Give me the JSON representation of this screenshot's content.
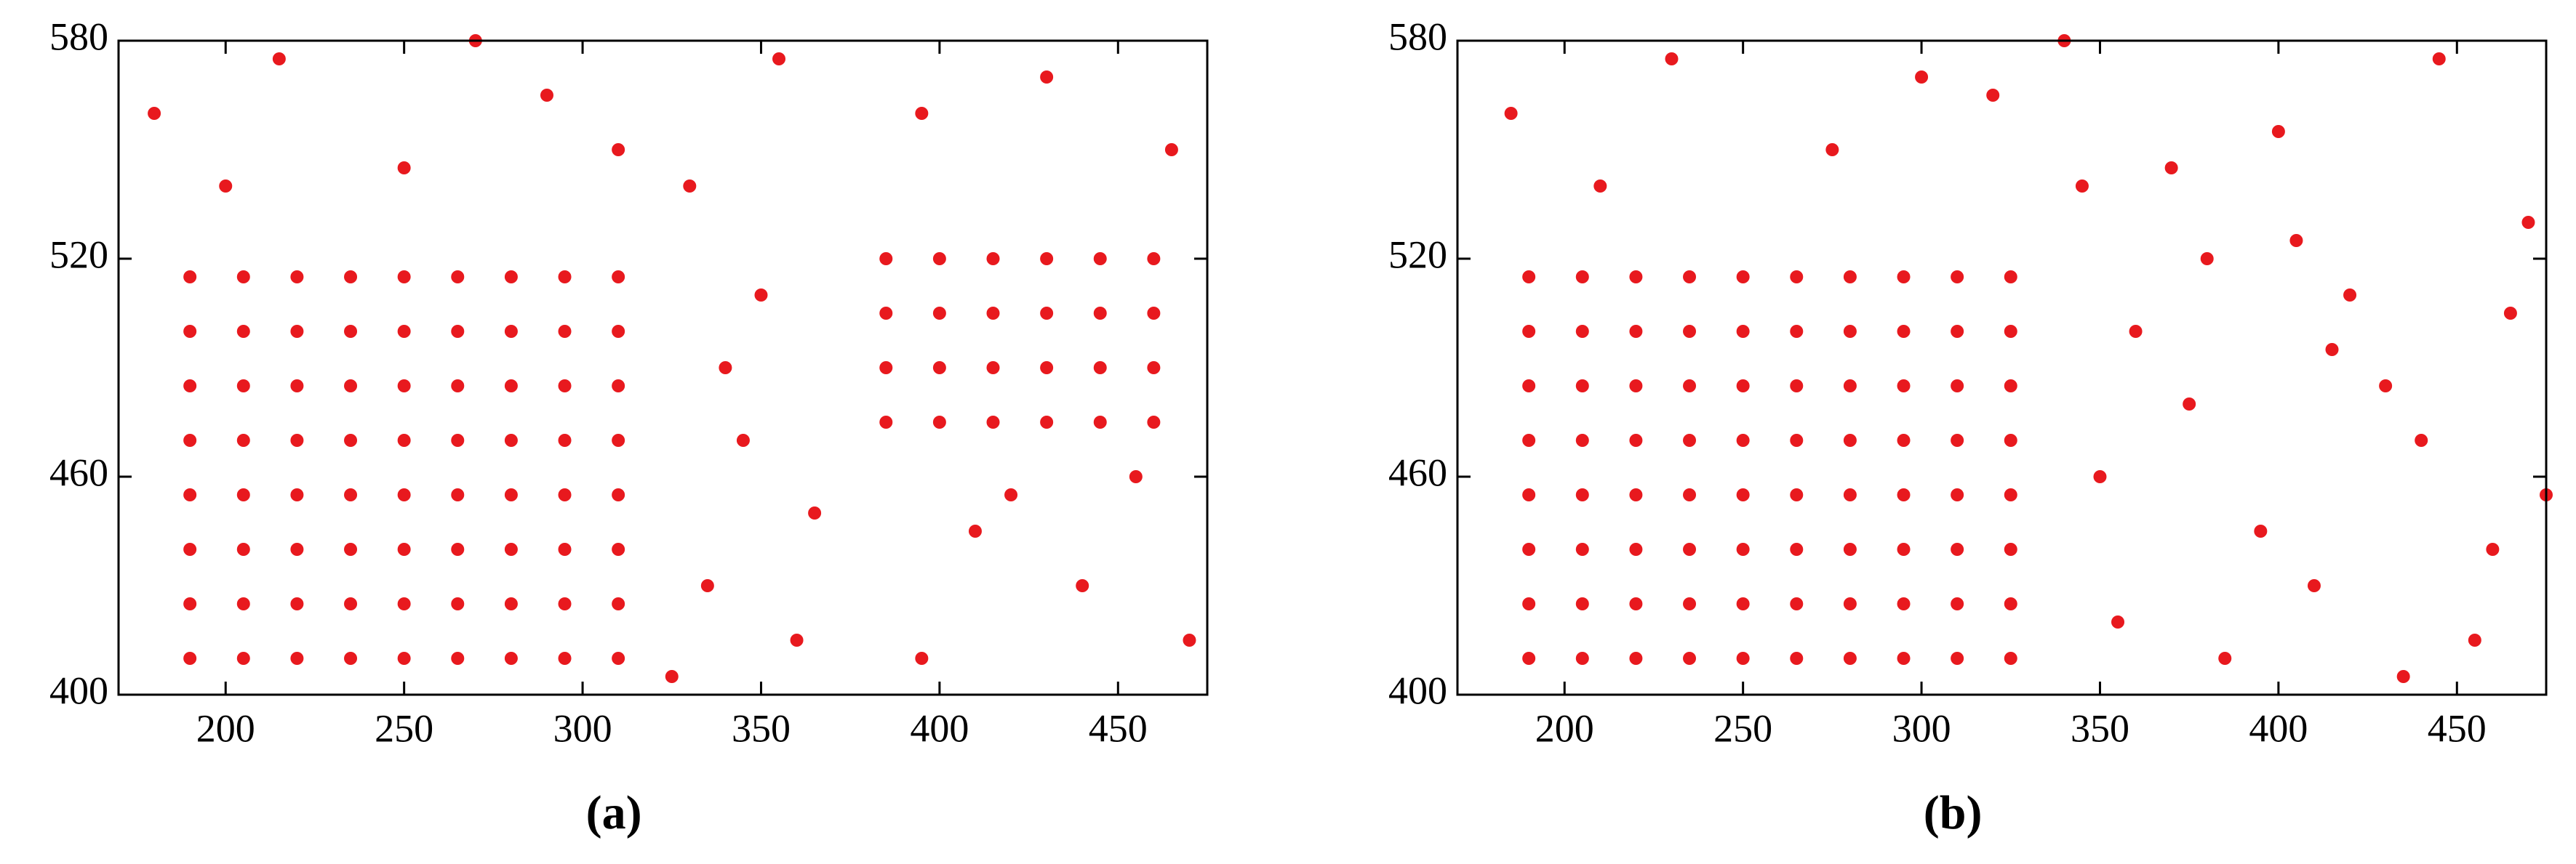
{
  "chart_data": [
    {
      "type": "scatter",
      "title": "(a)",
      "xlim": [
        170,
        475
      ],
      "ylim": [
        400,
        580
      ],
      "xticks": [
        200,
        250,
        300,
        350,
        400,
        450
      ],
      "yticks": [
        400,
        460,
        520,
        580
      ],
      "series": [
        {
          "color": "#e8191e",
          "x": [
            190,
            205,
            220,
            235,
            250,
            265,
            280,
            295,
            310,
            190,
            205,
            220,
            235,
            250,
            265,
            280,
            295,
            310,
            190,
            205,
            220,
            235,
            250,
            265,
            280,
            295,
            310,
            190,
            205,
            220,
            235,
            250,
            265,
            280,
            295,
            310,
            190,
            205,
            220,
            235,
            250,
            265,
            280,
            295,
            310,
            190,
            205,
            220,
            235,
            250,
            265,
            280,
            295,
            310,
            190,
            205,
            220,
            235,
            250,
            265,
            280,
            295,
            310,
            190,
            205,
            220,
            235,
            250,
            265,
            280,
            295,
            310,
            385,
            400,
            415,
            430,
            445,
            460,
            385,
            400,
            415,
            430,
            445,
            460,
            385,
            400,
            415,
            430,
            445,
            460,
            385,
            400,
            415,
            430,
            445,
            460,
            180,
            215,
            250,
            290,
            330,
            350,
            345,
            335,
            360,
            355,
            395,
            430,
            465,
            410,
            440,
            470,
            395,
            420,
            455,
            340,
            365,
            325,
            200,
            270,
            310
          ],
          "y": [
            410,
            410,
            410,
            410,
            410,
            410,
            410,
            410,
            410,
            425,
            425,
            425,
            425,
            425,
            425,
            425,
            425,
            425,
            440,
            440,
            440,
            440,
            440,
            440,
            440,
            440,
            440,
            455,
            455,
            455,
            455,
            455,
            455,
            455,
            455,
            455,
            470,
            470,
            470,
            470,
            470,
            470,
            470,
            470,
            470,
            485,
            485,
            485,
            485,
            485,
            485,
            485,
            485,
            485,
            500,
            500,
            500,
            500,
            500,
            500,
            500,
            500,
            500,
            515,
            515,
            515,
            515,
            515,
            515,
            515,
            515,
            515,
            475,
            475,
            475,
            475,
            475,
            475,
            490,
            490,
            490,
            490,
            490,
            490,
            505,
            505,
            505,
            505,
            505,
            505,
            520,
            520,
            520,
            520,
            520,
            520,
            560,
            575,
            545,
            565,
            540,
            510,
            470,
            430,
            415,
            575,
            560,
            570,
            550,
            445,
            430,
            415,
            410,
            455,
            460,
            490,
            450,
            405,
            540,
            580,
            550
          ]
        }
      ]
    },
    {
      "type": "scatter",
      "title": "(b)",
      "xlim": [
        170,
        475
      ],
      "ylim": [
        400,
        580
      ],
      "xticks": [
        200,
        250,
        300,
        350,
        400,
        450
      ],
      "yticks": [
        400,
        460,
        520,
        580
      ],
      "series": [
        {
          "color": "#e8191e",
          "x": [
            190,
            205,
            220,
            235,
            250,
            265,
            280,
            295,
            310,
            325,
            190,
            205,
            220,
            235,
            250,
            265,
            280,
            295,
            310,
            325,
            190,
            205,
            220,
            235,
            250,
            265,
            280,
            295,
            310,
            325,
            190,
            205,
            220,
            235,
            250,
            265,
            280,
            295,
            310,
            325,
            190,
            205,
            220,
            235,
            250,
            265,
            280,
            295,
            310,
            325,
            190,
            205,
            220,
            235,
            250,
            265,
            280,
            295,
            310,
            325,
            190,
            205,
            220,
            235,
            250,
            265,
            280,
            295,
            310,
            325,
            190,
            205,
            220,
            235,
            250,
            265,
            280,
            295,
            310,
            325,
            185,
            230,
            275,
            320,
            345,
            360,
            380,
            400,
            420,
            445,
            470,
            350,
            375,
            395,
            415,
            440,
            465,
            355,
            385,
            410,
            435,
            460,
            340,
            370,
            405,
            430,
            455,
            210,
            300,
            475
          ],
          "y": [
            410,
            410,
            410,
            410,
            410,
            410,
            410,
            410,
            410,
            410,
            425,
            425,
            425,
            425,
            425,
            425,
            425,
            425,
            425,
            425,
            440,
            440,
            440,
            440,
            440,
            440,
            440,
            440,
            440,
            440,
            455,
            455,
            455,
            455,
            455,
            455,
            455,
            455,
            455,
            455,
            470,
            470,
            470,
            470,
            470,
            470,
            470,
            470,
            470,
            470,
            485,
            485,
            485,
            485,
            485,
            485,
            485,
            485,
            485,
            485,
            500,
            500,
            500,
            500,
            500,
            500,
            500,
            500,
            500,
            500,
            515,
            515,
            515,
            515,
            515,
            515,
            515,
            515,
            515,
            515,
            560,
            575,
            550,
            565,
            540,
            500,
            520,
            555,
            510,
            575,
            530,
            460,
            480,
            445,
            495,
            470,
            505,
            420,
            410,
            430,
            405,
            440,
            580,
            545,
            525,
            485,
            415,
            540,
            570,
            455
          ]
        }
      ]
    }
  ]
}
